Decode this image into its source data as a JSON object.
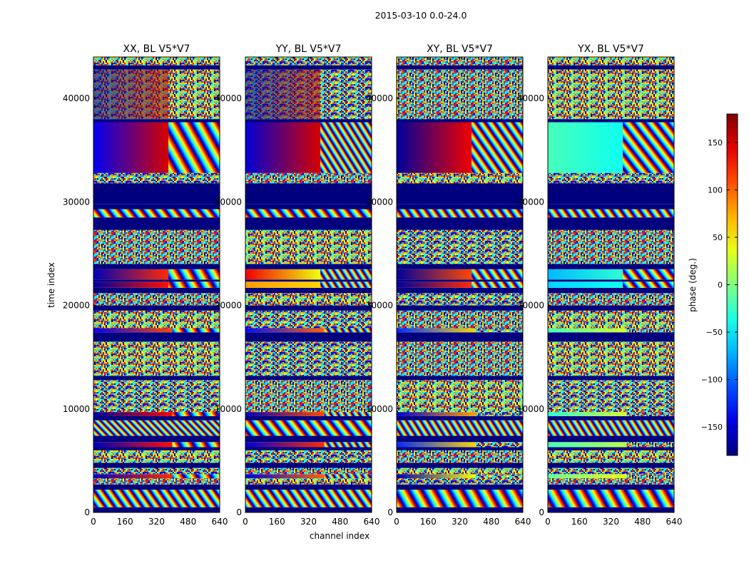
{
  "chart_data": {
    "type": "heatmap",
    "suptitle": "2015-03-10 0.0-24.0",
    "xlabel": "channel index",
    "ylabel": "time index",
    "x_range": [
      0,
      640
    ],
    "y_range": [
      0,
      44000
    ],
    "x_ticks": [
      0,
      160,
      320,
      480,
      640
    ],
    "y_ticks": [
      0,
      10000,
      20000,
      30000,
      40000
    ],
    "panels": [
      {
        "title": "XX, BL V5*V7"
      },
      {
        "title": "YY, BL V5*V7"
      },
      {
        "title": "XY, BL V5*V7"
      },
      {
        "title": "YX, BL V5*V7"
      }
    ],
    "colorbar": {
      "label": "phase (deg.)",
      "range": [
        -180,
        180
      ],
      "ticks": [
        -150,
        -100,
        -50,
        0,
        50,
        100,
        150
      ],
      "tick_labels": [
        "−150",
        "−100",
        "−50",
        "0",
        "50",
        "100",
        "150"
      ],
      "colormap": "jet"
    },
    "bands": [
      {
        "t0": 0,
        "t1": 500,
        "kind": "blank"
      },
      {
        "t0": 500,
        "t1": 2200,
        "kind": "fringe",
        "freq": [
          5,
          5,
          3,
          3
        ]
      },
      {
        "t0": 2200,
        "t1": 2700,
        "kind": "blank"
      },
      {
        "t0": 2700,
        "t1": 3300,
        "kind": "noise"
      },
      {
        "t0": 3300,
        "t1": 3700,
        "kind": "structured",
        "xx": [
          -160,
          120,
          400,
          "stripes"
        ],
        "yy": [
          -150,
          100,
          400,
          "stripes"
        ],
        "xy": [
          -160,
          40,
          400,
          "noise"
        ],
        "yx": [
          -10,
          40,
          400,
          "noise"
        ]
      },
      {
        "t0": 3700,
        "t1": 4300,
        "kind": "noise"
      },
      {
        "t0": 4300,
        "t1": 4800,
        "kind": "blank"
      },
      {
        "t0": 4800,
        "t1": 6000,
        "kind": "noise"
      },
      {
        "t0": 6000,
        "t1": 6300,
        "kind": "blank"
      },
      {
        "t0": 6300,
        "t1": 6800,
        "kind": "structured",
        "xx": [
          -160,
          130,
          400,
          "stripes"
        ],
        "yy": [
          -150,
          120,
          400,
          "stripes"
        ],
        "xy": [
          -120,
          60,
          400,
          "noise"
        ],
        "yx": [
          -20,
          20,
          400,
          "noise"
        ]
      },
      {
        "t0": 6800,
        "t1": 7400,
        "kind": "blank"
      },
      {
        "t0": 7400,
        "t1": 8900,
        "kind": "fringe",
        "freq": [
          8,
          6,
          4,
          4
        ]
      },
      {
        "t0": 8900,
        "t1": 9300,
        "kind": "blank"
      },
      {
        "t0": 9300,
        "t1": 9700,
        "kind": "structured",
        "xx": [
          -170,
          140,
          400,
          "stripes"
        ],
        "yy": [
          -160,
          110,
          400,
          "stripes"
        ],
        "xy": [
          -150,
          80,
          400,
          "noise"
        ],
        "yx": [
          -30,
          30,
          400,
          "noise"
        ]
      },
      {
        "t0": 9700,
        "t1": 12800,
        "kind": "noise"
      },
      {
        "t0": 12800,
        "t1": 13200,
        "kind": "blank"
      },
      {
        "t0": 13200,
        "t1": 16500,
        "kind": "noise"
      },
      {
        "t0": 16500,
        "t1": 17400,
        "kind": "blank"
      },
      {
        "t0": 17400,
        "t1": 17800,
        "kind": "structured",
        "xx": [
          -140,
          110,
          400,
          "stripes"
        ],
        "yy": [
          -130,
          100,
          400,
          "stripes"
        ],
        "xy": [
          -120,
          60,
          400,
          "noise"
        ],
        "yx": [
          -20,
          30,
          400,
          "noise"
        ]
      },
      {
        "t0": 17800,
        "t1": 19500,
        "kind": "noise"
      },
      {
        "t0": 19500,
        "t1": 20000,
        "kind": "blank"
      },
      {
        "t0": 20000,
        "t1": 21200,
        "kind": "noise"
      },
      {
        "t0": 21200,
        "t1": 21700,
        "kind": "blank"
      },
      {
        "t0": 21700,
        "t1": 22300,
        "kind": "structured",
        "xx": [
          -170,
          130,
          380,
          "stripes"
        ],
        "yy": [
          80,
          60,
          380,
          "stripes"
        ],
        "xy": [
          -170,
          120,
          380,
          "stripes"
        ],
        "yx": [
          -60,
          -40,
          380,
          "stripes"
        ]
      },
      {
        "t0": 22300,
        "t1": 22500,
        "kind": "blank"
      },
      {
        "t0": 22500,
        "t1": 23500,
        "kind": "structured",
        "xx": [
          -160,
          120,
          380,
          "stripes"
        ],
        "yy": [
          140,
          40,
          380,
          "stripes"
        ],
        "xy": [
          -170,
          110,
          380,
          "stripes"
        ],
        "yx": [
          -70,
          -30,
          380,
          "stripes"
        ]
      },
      {
        "t0": 23500,
        "t1": 24000,
        "kind": "blank"
      },
      {
        "t0": 24000,
        "t1": 27300,
        "kind": "noise"
      },
      {
        "t0": 27300,
        "t1": 28500,
        "kind": "blank"
      },
      {
        "t0": 28500,
        "t1": 29300,
        "kind": "fringe",
        "freq": [
          6,
          6,
          5,
          5
        ]
      },
      {
        "t0": 29300,
        "t1": 29800,
        "kind": "blank"
      },
      {
        "t0": 29800,
        "t1": 31800,
        "kind": "blank"
      },
      {
        "t0": 31800,
        "t1": 32800,
        "kind": "noise"
      },
      {
        "t0": 32800,
        "t1": 37700,
        "kind": "solid",
        "xx": [
          -140,
          150,
          380,
          "stripes"
        ],
        "yy": [
          -150,
          150,
          380,
          "stripes"
        ],
        "xy": [
          -170,
          140,
          380,
          "stripes"
        ],
        "yx": [
          -20,
          -40,
          380,
          "stripes"
        ]
      },
      {
        "t0": 37700,
        "t1": 38000,
        "kind": "blank"
      },
      {
        "t0": 38000,
        "t1": 42800,
        "kind": "redblue",
        "fade": [
          380,
          380,
          640,
          640
        ]
      },
      {
        "t0": 42800,
        "t1": 43200,
        "kind": "blank"
      },
      {
        "t0": 43200,
        "t1": 44000,
        "kind": "noise"
      }
    ]
  }
}
